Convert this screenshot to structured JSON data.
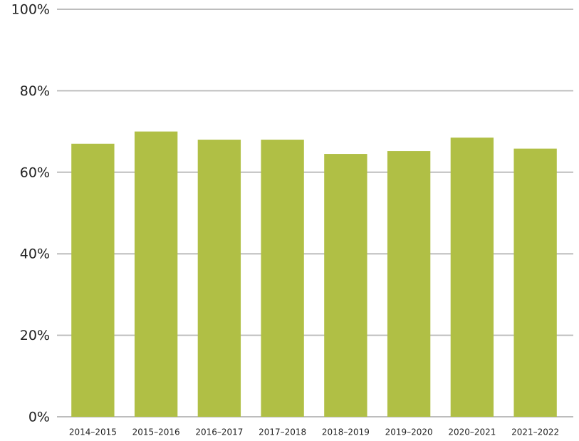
{
  "chart_data": {
    "type": "bar",
    "categories": [
      "2014–2015",
      "2015–2016",
      "2016–2017",
      "2017–2018",
      "2018–2019",
      "2019–2020",
      "2020–2021",
      "2021–2022"
    ],
    "values": [
      67,
      70,
      68,
      68,
      64.5,
      65.2,
      68.5,
      65.8
    ],
    "color": "#b0bf45",
    "ylim": [
      0,
      100
    ],
    "yticks": [
      {
        "value": 0,
        "label": "0%"
      },
      {
        "value": 20,
        "label": "20%"
      },
      {
        "value": 40,
        "label": "40%"
      },
      {
        "value": 60,
        "label": "60%"
      },
      {
        "value": 80,
        "label": "80%"
      },
      {
        "value": 100,
        "label": "100%"
      }
    ],
    "grid": true
  }
}
